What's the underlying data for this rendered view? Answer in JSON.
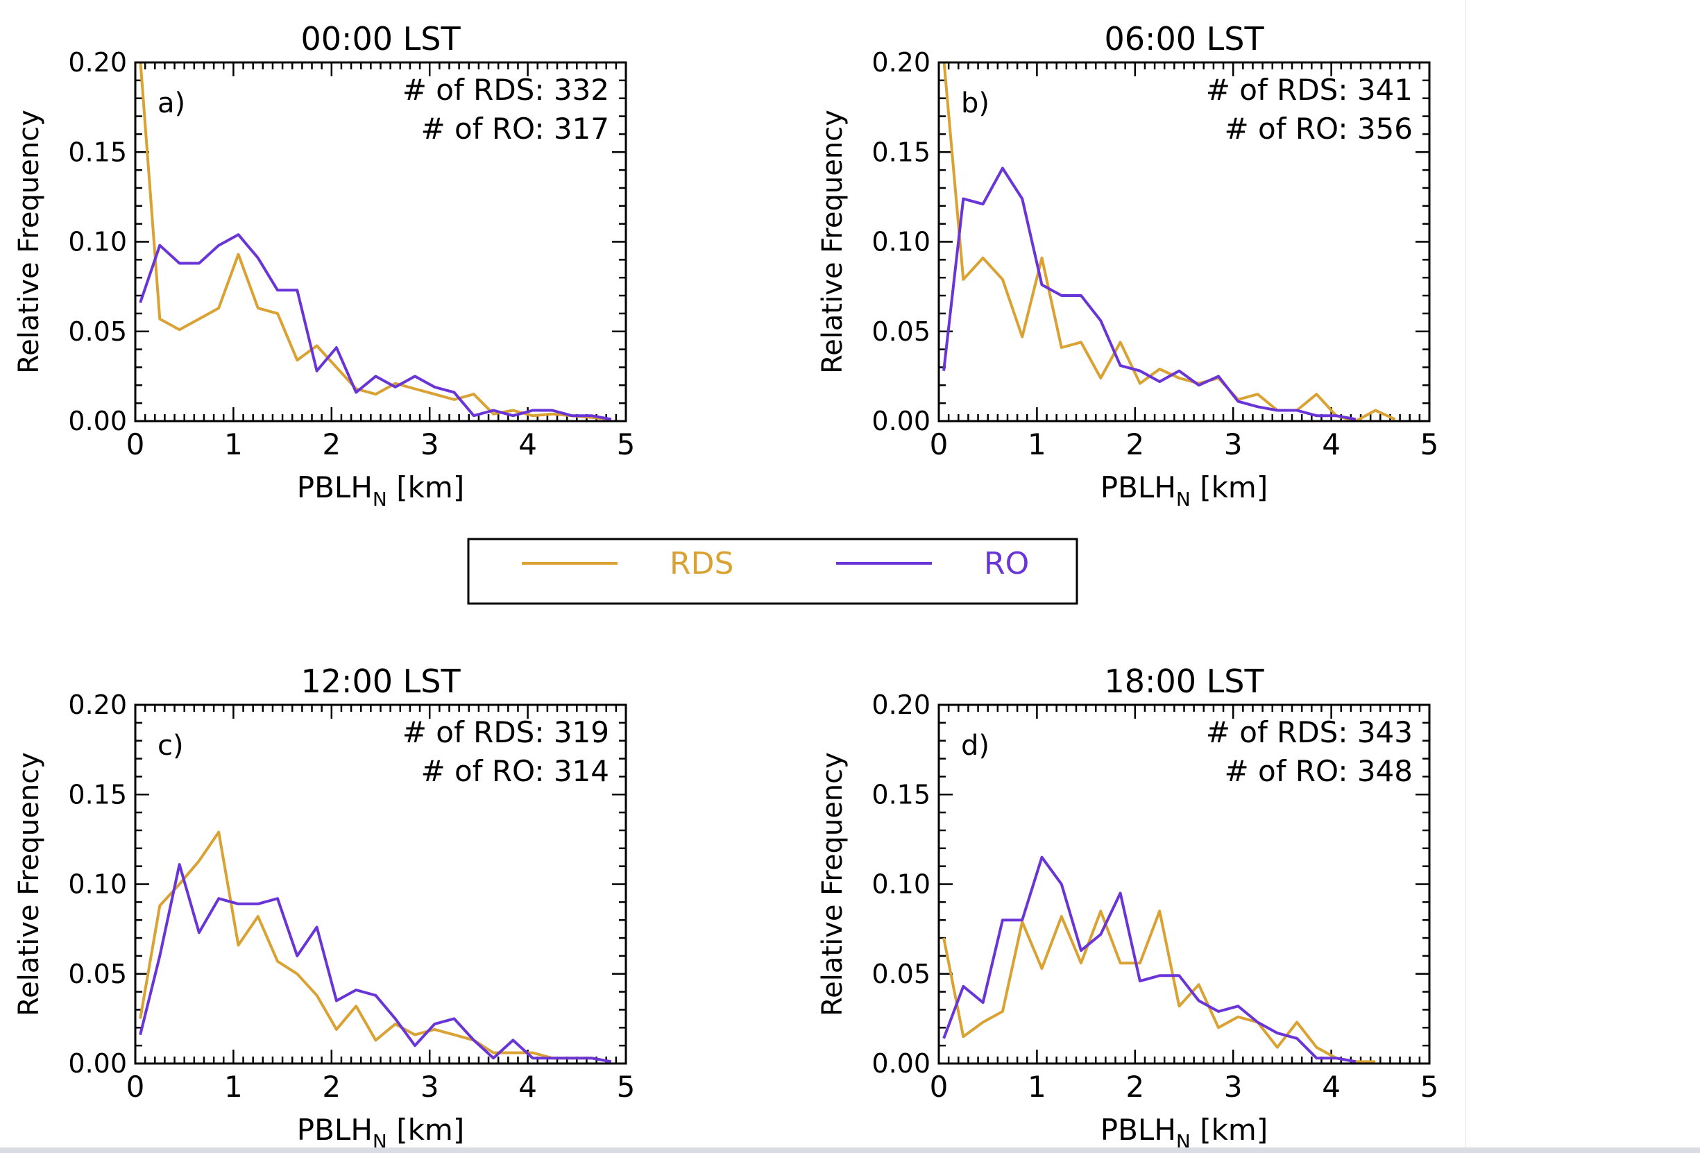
{
  "colors": {
    "RDS": "#d9a233",
    "RO": "#6a35d6",
    "axis": "#000000"
  },
  "legend": {
    "entries": [
      {
        "label": "RDS",
        "color": "#d9a233"
      },
      {
        "label": "RO",
        "color": "#6a35d6"
      }
    ],
    "placement": "center"
  },
  "chart_data": [
    {
      "type": "line",
      "title": "00:00 LST",
      "panel_label": "a)",
      "count_rds": "# of RDS: 332",
      "count_ro": "# of RO: 317",
      "xlabel_main": "PBLH",
      "xlabel_sub": "N",
      "xlabel_unit": " [km]",
      "ylabel": "Relative Frequency",
      "xlim": [
        0,
        5
      ],
      "ylim": [
        0,
        0.2
      ],
      "xticks": [
        "0",
        "1",
        "2",
        "3",
        "4",
        "5"
      ],
      "yticks": [
        "0.00",
        "0.05",
        "0.10",
        "0.15",
        "0.20"
      ],
      "series": [
        {
          "name": "RDS",
          "x": [
            0.05,
            0.25,
            0.45,
            0.65,
            0.85,
            1.05,
            1.25,
            1.45,
            1.65,
            1.85,
            2.05,
            2.25,
            2.45,
            2.65,
            2.85,
            3.05,
            3.25,
            3.45,
            3.65,
            3.85,
            4.05,
            4.25,
            4.45,
            4.65,
            4.85
          ],
          "y": [
            0.202,
            0.057,
            0.051,
            0.057,
            0.063,
            0.093,
            0.063,
            0.06,
            0.034,
            0.042,
            0.03,
            0.018,
            0.015,
            0.021,
            0.018,
            0.015,
            0.012,
            0.015,
            0.004,
            0.006,
            0.003,
            0.004,
            0.003,
            0.002,
            0.001
          ]
        },
        {
          "name": "RO",
          "x": [
            0.05,
            0.25,
            0.45,
            0.65,
            0.85,
            1.05,
            1.25,
            1.45,
            1.65,
            1.85,
            2.05,
            2.25,
            2.45,
            2.65,
            2.85,
            3.05,
            3.25,
            3.45,
            3.65,
            3.85,
            4.05,
            4.25,
            4.45,
            4.65,
            4.85
          ],
          "y": [
            0.066,
            0.098,
            0.088,
            0.088,
            0.098,
            0.104,
            0.091,
            0.073,
            0.073,
            0.028,
            0.041,
            0.016,
            0.025,
            0.019,
            0.025,
            0.019,
            0.016,
            0.003,
            0.006,
            0.003,
            0.006,
            0.006,
            0.003,
            0.003,
            0.001
          ]
        }
      ]
    },
    {
      "type": "line",
      "title": "06:00 LST",
      "panel_label": "b)",
      "count_rds": "# of RDS: 341",
      "count_ro": "# of RO: 356",
      "xlabel_main": "PBLH",
      "xlabel_sub": "N",
      "xlabel_unit": " [km]",
      "ylabel": "Relative Frequency",
      "xlim": [
        0,
        5
      ],
      "ylim": [
        0,
        0.2
      ],
      "xticks": [
        "0",
        "1",
        "2",
        "3",
        "4",
        "5"
      ],
      "yticks": [
        "0.00",
        "0.05",
        "0.10",
        "0.15",
        "0.20"
      ],
      "series": [
        {
          "name": "RDS",
          "x": [
            0.05,
            0.25,
            0.45,
            0.65,
            0.85,
            1.05,
            1.25,
            1.45,
            1.65,
            1.85,
            2.05,
            2.25,
            2.45,
            2.65,
            2.85,
            3.05,
            3.25,
            3.45,
            3.65,
            3.85,
            4.05,
            4.25,
            4.45,
            4.65
          ],
          "y": [
            0.202,
            0.079,
            0.091,
            0.079,
            0.047,
            0.091,
            0.041,
            0.044,
            0.024,
            0.044,
            0.021,
            0.029,
            0.024,
            0.021,
            0.024,
            0.012,
            0.015,
            0.006,
            0.006,
            0.015,
            0.003,
            0.0,
            0.006,
            0.001
          ]
        },
        {
          "name": "RO",
          "x": [
            0.05,
            0.25,
            0.45,
            0.65,
            0.85,
            1.05,
            1.25,
            1.45,
            1.65,
            1.85,
            2.05,
            2.25,
            2.45,
            2.65,
            2.85,
            3.05,
            3.25,
            3.45,
            3.65,
            3.85,
            4.05,
            4.25
          ],
          "y": [
            0.028,
            0.124,
            0.121,
            0.141,
            0.124,
            0.076,
            0.07,
            0.07,
            0.056,
            0.031,
            0.028,
            0.022,
            0.028,
            0.02,
            0.025,
            0.011,
            0.008,
            0.006,
            0.006,
            0.003,
            0.003,
            0.001
          ]
        }
      ]
    },
    {
      "type": "line",
      "title": "12:00 LST",
      "panel_label": "c)",
      "count_rds": "# of RDS: 319",
      "count_ro": "# of RO: 314",
      "xlabel_main": "PBLH",
      "xlabel_sub": "N",
      "xlabel_unit": " [km]",
      "ylabel": "Relative Frequency",
      "xlim": [
        0,
        5
      ],
      "ylim": [
        0,
        0.2
      ],
      "xticks": [
        "0",
        "1",
        "2",
        "3",
        "4",
        "5"
      ],
      "yticks": [
        "0.00",
        "0.05",
        "0.10",
        "0.15",
        "0.20"
      ],
      "series": [
        {
          "name": "RDS",
          "x": [
            0.05,
            0.25,
            0.45,
            0.65,
            0.85,
            1.05,
            1.25,
            1.45,
            1.65,
            1.85,
            2.05,
            2.25,
            2.45,
            2.65,
            2.85,
            3.05,
            3.25,
            3.45,
            3.65,
            3.85,
            4.05,
            4.25,
            4.45,
            4.65,
            4.85
          ],
          "y": [
            0.025,
            0.088,
            0.1,
            0.113,
            0.129,
            0.066,
            0.082,
            0.057,
            0.05,
            0.038,
            0.019,
            0.032,
            0.013,
            0.022,
            0.016,
            0.019,
            0.016,
            0.013,
            0.006,
            0.006,
            0.006,
            0.003,
            0.003,
            0.003,
            0.001
          ]
        },
        {
          "name": "RO",
          "x": [
            0.05,
            0.25,
            0.45,
            0.65,
            0.85,
            1.05,
            1.25,
            1.45,
            1.65,
            1.85,
            2.05,
            2.25,
            2.45,
            2.65,
            2.85,
            3.05,
            3.25,
            3.45,
            3.65,
            3.85,
            4.05,
            4.25,
            4.45,
            4.65,
            4.85
          ],
          "y": [
            0.016,
            0.06,
            0.111,
            0.073,
            0.092,
            0.089,
            0.089,
            0.092,
            0.06,
            0.076,
            0.035,
            0.041,
            0.038,
            0.025,
            0.01,
            0.022,
            0.025,
            0.013,
            0.003,
            0.013,
            0.003,
            0.003,
            0.003,
            0.003,
            0.001
          ]
        }
      ]
    },
    {
      "type": "line",
      "title": "18:00 LST",
      "panel_label": "d)",
      "count_rds": "# of RDS: 343",
      "count_ro": "# of RO: 348",
      "xlabel_main": "PBLH",
      "xlabel_sub": "N",
      "xlabel_unit": " [km]",
      "ylabel": "Relative Frequency",
      "xlim": [
        0,
        5
      ],
      "ylim": [
        0,
        0.2
      ],
      "xticks": [
        "0",
        "1",
        "2",
        "3",
        "4",
        "5"
      ],
      "yticks": [
        "0.00",
        "0.05",
        "0.10",
        "0.15",
        "0.20"
      ],
      "series": [
        {
          "name": "RDS",
          "x": [
            0.05,
            0.25,
            0.45,
            0.65,
            0.85,
            1.05,
            1.25,
            1.45,
            1.65,
            1.85,
            2.05,
            2.25,
            2.45,
            2.65,
            2.85,
            3.05,
            3.25,
            3.45,
            3.65,
            3.85,
            4.05,
            4.25,
            4.45
          ],
          "y": [
            0.07,
            0.015,
            0.023,
            0.029,
            0.079,
            0.053,
            0.082,
            0.056,
            0.085,
            0.056,
            0.056,
            0.085,
            0.032,
            0.044,
            0.02,
            0.026,
            0.023,
            0.009,
            0.023,
            0.009,
            0.003,
            0.001,
            0.001
          ]
        },
        {
          "name": "RO",
          "x": [
            0.05,
            0.25,
            0.45,
            0.65,
            0.85,
            1.05,
            1.25,
            1.45,
            1.65,
            1.85,
            2.05,
            2.25,
            2.45,
            2.65,
            2.85,
            3.05,
            3.25,
            3.45,
            3.65,
            3.85,
            4.05,
            4.25
          ],
          "y": [
            0.014,
            0.043,
            0.034,
            0.08,
            0.08,
            0.115,
            0.1,
            0.063,
            0.072,
            0.095,
            0.046,
            0.049,
            0.049,
            0.035,
            0.029,
            0.032,
            0.023,
            0.017,
            0.014,
            0.003,
            0.003,
            0.001
          ]
        }
      ]
    }
  ]
}
